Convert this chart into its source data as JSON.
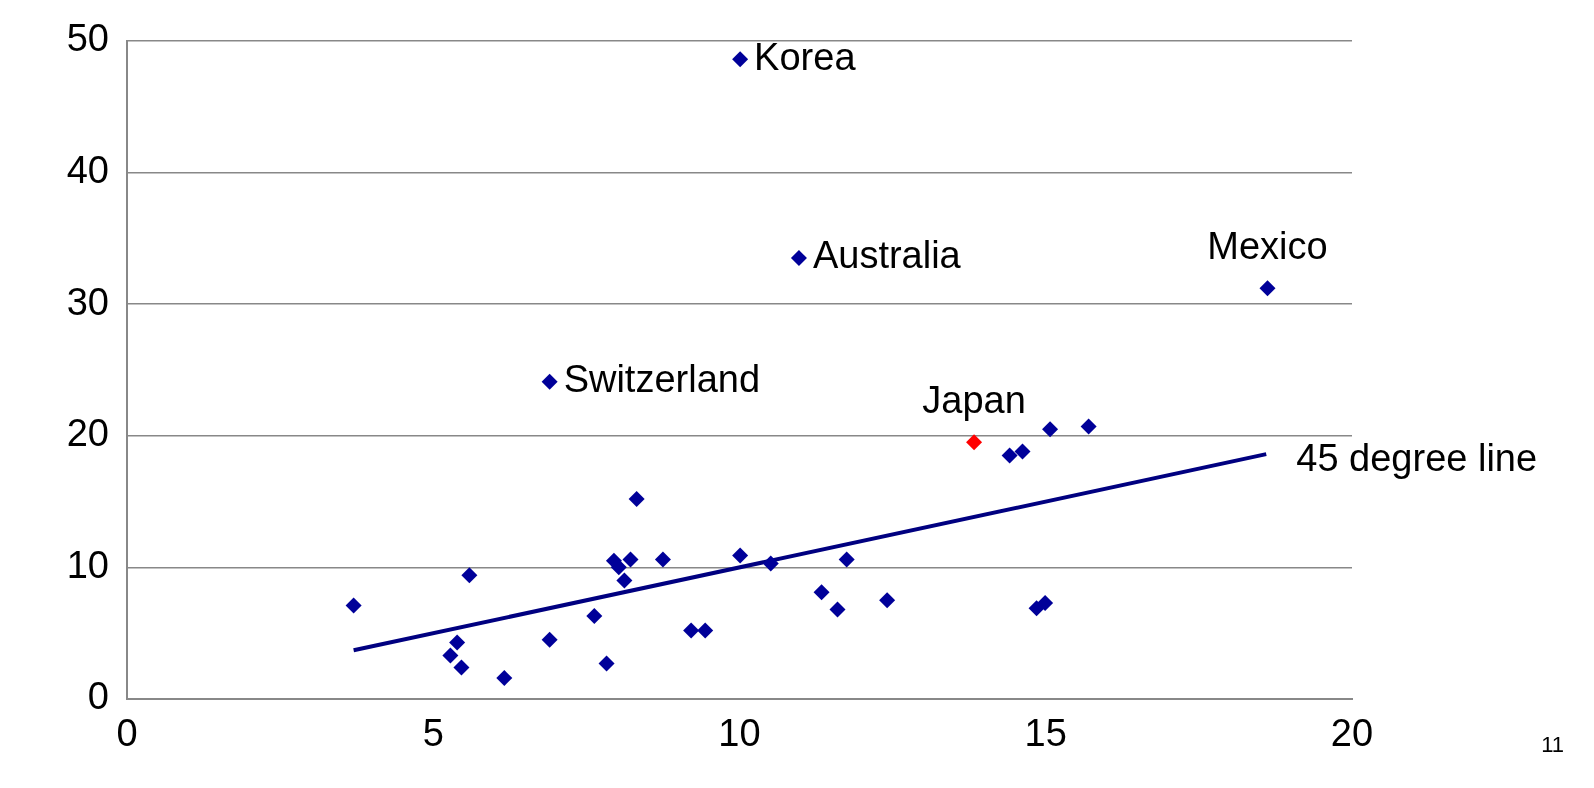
{
  "chart_data": {
    "type": "scatter",
    "marker": "diamond",
    "grid": "y",
    "legend": false,
    "xlim": [
      0,
      20
    ],
    "xticks": [
      0,
      5,
      10,
      15,
      20
    ],
    "ylim": [
      0,
      50
    ],
    "yticks": [
      0,
      10,
      20,
      30,
      40,
      50
    ],
    "series": [
      {
        "color": "#000099",
        "x": [
          3.7,
          5.39,
          5.28,
          5.46,
          5.59,
          6.16,
          6.9,
          6.9,
          7.63,
          7.83,
          7.95,
          8.03,
          8.12,
          8.22,
          8.32,
          8.75,
          9.21,
          9.44,
          10.01,
          10.01,
          10.51,
          10.97,
          11.34,
          11.6,
          11.75,
          12.41,
          14.41,
          14.62,
          14.85,
          14.99,
          15.07,
          15.7,
          18.62
        ],
        "values": [
          7.1,
          4.3,
          3.3,
          2.4,
          9.4,
          1.6,
          24.1,
          4.5,
          6.3,
          2.7,
          10.5,
          10,
          9,
          10.6,
          15.2,
          10.6,
          5.2,
          5.2,
          48.6,
          10.9,
          10.3,
          33.5,
          8.1,
          6.8,
          10.6,
          7.5,
          18.5,
          18.8,
          6.9,
          7.3,
          20.5,
          20.7,
          31.2
        ]
      },
      {
        "color": "#ff0000",
        "x": [
          13.83
        ],
        "values": [
          19.5
        ]
      },
      {
        "type": "line",
        "name": "45 degree line",
        "color": "#000080",
        "marker": "none",
        "x": [
          3.7,
          18.6
        ],
        "values": [
          3.7,
          18.6
        ]
      }
    ],
    "annotations": [
      {
        "text": "Korea",
        "x": 10.01,
        "y": 48.6
      },
      {
        "text": "Australia",
        "x": 10.97,
        "y": 33.5
      },
      {
        "text": "Mexico",
        "x": 18.62,
        "y": 31.2
      },
      {
        "text": "Switzerland",
        "x": 6.9,
        "y": 24.1
      },
      {
        "text": "Japan",
        "x": 13.83,
        "y": 19.5
      },
      "11"
    ]
  }
}
